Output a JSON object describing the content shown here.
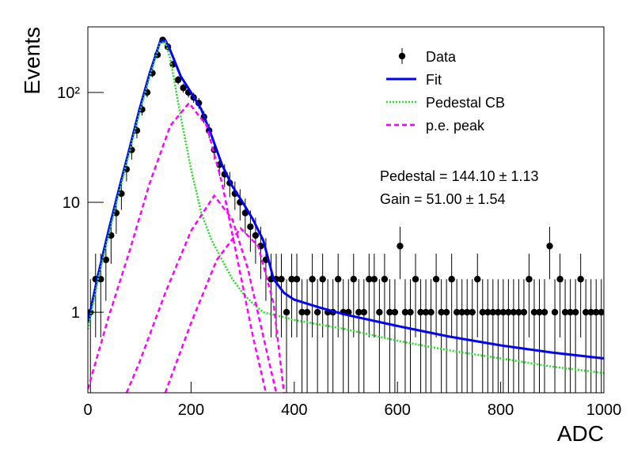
{
  "chart_data": {
    "type": "histogram-fit",
    "xlabel": "ADC",
    "ylabel": "Events",
    "xlim": [
      0,
      1000
    ],
    "xticks": [
      0,
      200,
      400,
      600,
      800,
      1000
    ],
    "ylim": [
      0.185,
      395
    ],
    "log_y": true,
    "yticks": [
      1,
      10,
      {
        "value": 100,
        "label": "10²"
      }
    ],
    "legend_position": "top right",
    "annotations": [
      "Pedestal = 144.10 ± 1.13",
      "Gain = 51.00 ± 1.54"
    ],
    "series": [
      {
        "name": "Data",
        "color": "#000000",
        "style": "points",
        "x": [
          5,
          15,
          25,
          35,
          45,
          55,
          65,
          75,
          85,
          95,
          105,
          115,
          125,
          135,
          145,
          155,
          165,
          175,
          185,
          195,
          205,
          215,
          225,
          235,
          245,
          255,
          265,
          275,
          285,
          295,
          305,
          315,
          325,
          335,
          345,
          355,
          365,
          375,
          385,
          395,
          405,
          415,
          425,
          435,
          445,
          455,
          465,
          475,
          485,
          495,
          505,
          515,
          525,
          535,
          545,
          555,
          565,
          575,
          585,
          595,
          605,
          615,
          625,
          635,
          645,
          655,
          665,
          675,
          685,
          695,
          705,
          715,
          725,
          735,
          745,
          755,
          765,
          775,
          785,
          795,
          805,
          815,
          825,
          835,
          845,
          855,
          865,
          875,
          885,
          895,
          905,
          915,
          925,
          935,
          945,
          955,
          965,
          975,
          985,
          995
        ],
        "values": [
          1,
          2,
          2,
          3,
          5,
          8,
          12,
          20,
          30,
          45,
          70,
          100,
          150,
          220,
          300,
          260,
          180,
          130,
          110,
          100,
          90,
          80,
          60,
          45,
          30,
          22,
          18,
          15,
          12,
          10,
          8,
          6,
          5,
          4,
          3,
          2,
          2,
          2,
          1,
          2,
          2,
          1,
          1,
          2,
          1,
          2,
          1,
          1,
          2,
          1,
          1,
          2,
          1,
          1,
          2,
          2,
          1,
          2,
          1,
          1,
          4,
          1,
          1,
          2,
          1,
          1,
          1,
          2,
          1,
          1,
          2,
          1,
          1,
          1,
          1,
          2,
          1,
          1,
          1,
          1,
          1,
          1,
          1,
          1,
          1,
          2,
          1,
          1,
          1,
          4,
          1,
          2,
          1,
          1,
          1,
          2,
          1,
          1,
          1,
          1
        ],
        "errors": [
          1,
          1.41,
          1.41,
          1.73,
          2.24,
          2.83,
          3.46,
          4.47,
          5.48,
          6.71,
          8.37,
          10,
          12.25,
          14.83,
          17.32,
          16.12,
          13.42,
          11.4,
          10.49,
          10,
          9.49,
          8.94,
          7.75,
          6.71,
          5.48,
          4.69,
          4.24,
          3.87,
          3.46,
          3.16,
          2.83,
          2.45,
          2.24,
          2,
          1.73,
          1.41,
          1.41,
          1.41,
          1,
          1.41,
          1.41,
          1,
          1,
          1.41,
          1,
          1.41,
          1,
          1,
          1.41,
          1,
          1,
          1.41,
          1,
          1,
          1.41,
          1.41,
          1,
          1.41,
          1,
          1,
          2,
          1,
          1,
          1.41,
          1,
          1,
          1,
          1.41,
          1,
          1,
          1.41,
          1,
          1,
          1,
          1,
          1.41,
          1,
          1,
          1,
          1,
          1,
          1,
          1,
          1,
          1,
          1.41,
          1,
          1,
          1,
          2,
          1,
          1.41,
          1,
          1,
          1,
          1.41,
          1,
          1,
          1,
          1
        ]
      },
      {
        "name": "Fit",
        "color": "#0000ff",
        "style": "line",
        "dash": "solid",
        "x": [
          0,
          20,
          40,
          60,
          80,
          100,
          120,
          140,
          150,
          160,
          180,
          200,
          220,
          240,
          260,
          280,
          300,
          320,
          340,
          360,
          380,
          400,
          450,
          500,
          600,
          700,
          800,
          900,
          1000
        ],
        "values": [
          0.8,
          2.2,
          5.5,
          13,
          30,
          70,
          150,
          290,
          300,
          240,
          140,
          100,
          70,
          40,
          22,
          14,
          10,
          7,
          4.5,
          2,
          1.5,
          1.3,
          1.1,
          0.95,
          0.75,
          0.6,
          0.5,
          0.43,
          0.38
        ]
      },
      {
        "name": "Pedestal CB",
        "color": "#22dd22",
        "style": "line",
        "dash": "dotted",
        "x": [
          0,
          20,
          40,
          60,
          80,
          100,
          120,
          140,
          150,
          160,
          180,
          200,
          220,
          240,
          260,
          280,
          300,
          320,
          340,
          360,
          400,
          500,
          600,
          700,
          800,
          900,
          1000
        ],
        "values": [
          0.7,
          2,
          5,
          12,
          28,
          65,
          140,
          280,
          290,
          200,
          60,
          20,
          8,
          4.5,
          3,
          2,
          1.5,
          1.2,
          1.0,
          0.95,
          0.85,
          0.7,
          0.55,
          0.45,
          0.38,
          0.32,
          0.28
        ]
      },
      {
        "name": "p.e. peak",
        "color": "#ff00ff",
        "style": "line",
        "dash": "dashed",
        "x": [
          0,
          40,
          80,
          120,
          160,
          196,
          230,
          260,
          290,
          320,
          345,
          null,
          75,
          100,
          150,
          200,
          245,
          280,
          310,
          340,
          365,
          null,
          150,
          200,
          250,
          296,
          330,
          360,
          380
        ],
        "values": [
          0.2,
          0.9,
          3.5,
          15,
          50,
          80,
          50,
          15,
          3,
          0.6,
          0.185,
          null,
          0.185,
          0.35,
          1.5,
          5.5,
          11.5,
          7,
          2.5,
          0.6,
          0.185,
          null,
          0.185,
          0.8,
          3,
          5.8,
          4,
          1.2,
          0.185
        ]
      }
    ]
  }
}
